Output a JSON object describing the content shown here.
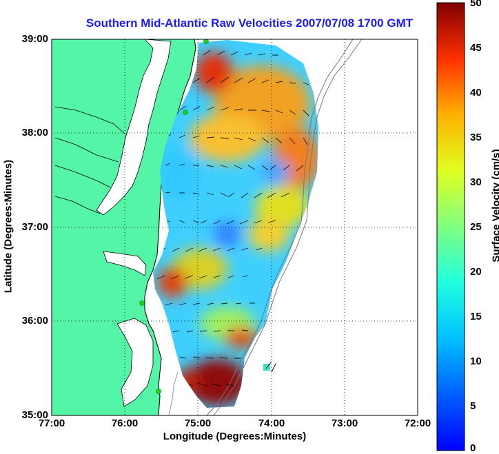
{
  "title": "Southern Mid-Atlantic Raw Velocities 2007/07/08 1700 GMT",
  "chart_data": {
    "type": "heatmap",
    "title": "Southern Mid-Atlantic Raw Velocities 2007/07/08 1700 GMT",
    "xlabel": "Longitude (Degrees:Minutes)",
    "ylabel": "Latitude (Degrees:Minutes)",
    "x_ticks": [
      "77:00",
      "76:00",
      "75:00",
      "74:00",
      "73:00",
      "72:00"
    ],
    "y_ticks": [
      "39:00",
      "38:00",
      "37:00",
      "36:00",
      "35:00"
    ],
    "xlim": [
      -77,
      -72
    ],
    "ylim": [
      35,
      39
    ],
    "grid": true,
    "colorbar": {
      "label": "Surface Velocity (cm/s)",
      "ticks": [
        "50",
        "45",
        "40",
        "35",
        "30",
        "25",
        "20",
        "15",
        "10",
        "5",
        "0"
      ],
      "range": [
        0,
        50
      ],
      "colormap": "jet"
    },
    "colors": {
      "land": "#55f5a8",
      "water": "#ffffff",
      "title": "#1a1aff",
      "station": "#22cc22"
    }
  }
}
